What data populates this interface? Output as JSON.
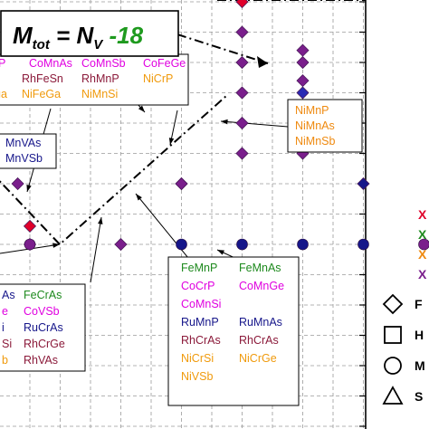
{
  "chart_data": {
    "type": "scatter",
    "title": "",
    "xlabel": "",
    "ylabel": "",
    "xlim": [
      -0.5,
      10.6
    ],
    "ylim": [
      -3.0,
      8.0
    ],
    "grid": true,
    "formula": {
      "prefix": "M",
      "sub1": "tot",
      "mid": " = N",
      "sub2": "V",
      "tail": " -18"
    },
    "colors": {
      "red": "#e0002a",
      "green": "#1e8a1e",
      "orange": "#ef8a10",
      "purple": "#7a1e8c",
      "magenta": "#e000e0",
      "darkred": "#8b1a3a",
      "navy": "#16168a",
      "blue": "#2a2ab4",
      "yellow_orange": "#f09a0c"
    },
    "guide_lines": [
      {
        "name": "slope-up",
        "points": [
          [
            -0.5,
            1.0
          ],
          [
            1.5,
            0.0
          ],
          [
            6.5,
            5.0
          ]
        ]
      },
      {
        "name": "slope-down",
        "points": [
          [
            5.0,
            7.0
          ],
          [
            7.5,
            6.0
          ]
        ]
      }
    ],
    "points": [
      {
        "x": -0.2,
        "y": 1.0,
        "shape": "diamond",
        "color": "purple"
      },
      {
        "x": 0.0,
        "y": 0.3,
        "shape": "diamond",
        "color": "red"
      },
      {
        "x": 0.0,
        "y": 0.0,
        "shape": "diamond",
        "color": "orange"
      },
      {
        "x": 0.0,
        "y": 0.0,
        "shape": "circle",
        "color": "purple"
      },
      {
        "x": 1.5,
        "y": 0.0,
        "shape": "diamond",
        "color": "purple"
      },
      {
        "x": 2.5,
        "y": 0.0,
        "shape": "circle",
        "color": "navy"
      },
      {
        "x": 2.5,
        "y": 1.0,
        "shape": "diamond",
        "color": "red"
      },
      {
        "x": 2.5,
        "y": 1.0,
        "shape": "diamond",
        "color": "purple"
      },
      {
        "x": 3.5,
        "y": 4.0,
        "shape": "diamond",
        "color": "red"
      },
      {
        "x": 3.5,
        "y": 3.5,
        "shape": "diamond",
        "color": "purple"
      },
      {
        "x": 3.5,
        "y": 3.0,
        "shape": "diamond",
        "color": "purple"
      },
      {
        "x": 3.5,
        "y": 2.5,
        "shape": "diamond",
        "color": "purple"
      },
      {
        "x": 3.5,
        "y": 2.0,
        "shape": "diamond",
        "color": "purple"
      },
      {
        "x": 3.5,
        "y": 1.5,
        "shape": "diamond",
        "color": "purple"
      },
      {
        "x": 3.5,
        "y": 0.0,
        "shape": "circle",
        "color": "navy"
      },
      {
        "x": 4.5,
        "y": 2.5,
        "shape": "diamond",
        "color": "blue"
      },
      {
        "x": 4.5,
        "y": 3.2,
        "shape": "diamond",
        "color": "purple"
      },
      {
        "x": 4.5,
        "y": 3.0,
        "shape": "diamond",
        "color": "purple"
      },
      {
        "x": 4.5,
        "y": 2.7,
        "shape": "diamond",
        "color": "purple"
      },
      {
        "x": 4.5,
        "y": 1.5,
        "shape": "diamond",
        "color": "purple"
      },
      {
        "x": 4.5,
        "y": 0.0,
        "shape": "circle",
        "color": "navy"
      },
      {
        "x": 5.5,
        "y": 1.0,
        "shape": "diamond",
        "color": "navy"
      },
      {
        "x": 5.5,
        "y": 0.0,
        "shape": "circle",
        "color": "navy"
      },
      {
        "x": 6.5,
        "y": 5.0,
        "shape": "diamond",
        "color": "orange"
      },
      {
        "x": 6.5,
        "y": 4.6,
        "shape": "diamond",
        "color": "magenta"
      },
      {
        "x": 6.5,
        "y": 4.2,
        "shape": "diamond",
        "color": "magenta"
      },
      {
        "x": 6.5,
        "y": 0.0,
        "shape": "circle",
        "color": "purple"
      },
      {
        "x": 7.5,
        "y": 0.0,
        "shape": "circle",
        "color": "purple"
      },
      {
        "x": 8.5,
        "y": 0.2,
        "shape": "diamond",
        "color": "magenta"
      },
      {
        "x": 8.5,
        "y": 0.0,
        "shape": "circle",
        "color": "purple"
      },
      {
        "x": 9.5,
        "y": 0.0,
        "shape": "circle",
        "color": "orange"
      }
    ],
    "label_boxes": [
      {
        "name": "top",
        "rows": [
          [
            {
              "text": "P",
              "color": "magenta"
            },
            {
              "text": "CoMnAs",
              "color": "magenta"
            },
            {
              "text": "CoMnSb",
              "color": "magenta"
            },
            {
              "text": "CoFeGe",
              "color": "magenta"
            }
          ],
          [
            {
              "text": "RhFeSn",
              "color": "darkred"
            },
            {
              "text": "RhMnP",
              "color": "darkred"
            },
            {
              "text": "NiCrP",
              "color": "yellow_orange"
            }
          ],
          [
            {
              "text": "ga",
              "color": "yellow_orange"
            },
            {
              "text": "NiFeGa",
              "color": "yellow_orange"
            },
            {
              "text": "NiMnSi",
              "color": "yellow_orange"
            }
          ]
        ]
      },
      {
        "name": "mid-left",
        "rows": [
          [
            {
              "text": "MnVAs",
              "color": "navy"
            }
          ],
          [
            {
              "text": "MnVSb",
              "color": "navy"
            }
          ]
        ]
      },
      {
        "name": "right",
        "rows": [
          [
            {
              "text": "NiMnP",
              "color": "orange"
            }
          ],
          [
            {
              "text": "NiMnAs",
              "color": "orange"
            }
          ],
          [
            {
              "text": "NiMnSb",
              "color": "orange"
            }
          ]
        ]
      },
      {
        "name": "bottom-left",
        "rows": [
          [
            {
              "text": "As",
              "color": "navy"
            },
            {
              "text": "FeCrAs",
              "color": "green"
            }
          ],
          [
            {
              "text": "e",
              "color": "magenta"
            },
            {
              "text": "CoVSb",
              "color": "magenta"
            }
          ],
          [
            {
              "text": "i",
              "color": "navy"
            },
            {
              "text": "RuCrAs",
              "color": "navy"
            }
          ],
          [
            {
              "text": "Si",
              "color": "darkred"
            },
            {
              "text": "RhCrGe",
              "color": "darkred"
            }
          ],
          [
            {
              "text": "b",
              "color": "yellow_orange"
            },
            {
              "text": "RhVAs",
              "color": "darkred"
            }
          ]
        ]
      },
      {
        "name": "bottom-right",
        "rows": [
          [
            {
              "text": "FeMnP",
              "color": "green"
            },
            {
              "text": "FeMnAs",
              "color": "green"
            }
          ],
          [
            {
              "text": "CoCrP",
              "color": "magenta"
            },
            {
              "text": "CoMnGe",
              "color": "magenta"
            }
          ],
          [
            {
              "text": "CoMnSi",
              "color": "magenta"
            },
            {
              "text": ""
            }
          ],
          [
            {
              "text": "RuMnP",
              "color": "navy"
            },
            {
              "text": "RuMnAs",
              "color": "navy"
            }
          ],
          [
            {
              "text": "RhCrAs",
              "color": "darkred"
            },
            {
              "text": "RhCrAs",
              "color": "darkred"
            }
          ],
          [
            {
              "text": "NiCrSi",
              "color": "yellow_orange"
            },
            {
              "text": "NiCrGe",
              "color": "yellow_orange"
            }
          ],
          [
            {
              "text": "NiVSb",
              "color": "yellow_orange"
            }
          ]
        ]
      }
    ],
    "legend": {
      "placement": "right",
      "series_markers": [
        {
          "text": "X",
          "color": "red"
        },
        {
          "text": "X",
          "color": "green"
        },
        {
          "text": "X",
          "color": "orange"
        },
        {
          "text": "X",
          "color": "purple"
        }
      ],
      "shape_keys": [
        {
          "shape": "diamond",
          "text": "F"
        },
        {
          "shape": "square",
          "text": "H"
        },
        {
          "shape": "circle",
          "text": "M"
        },
        {
          "shape": "triangle",
          "text": "S"
        }
      ]
    }
  }
}
